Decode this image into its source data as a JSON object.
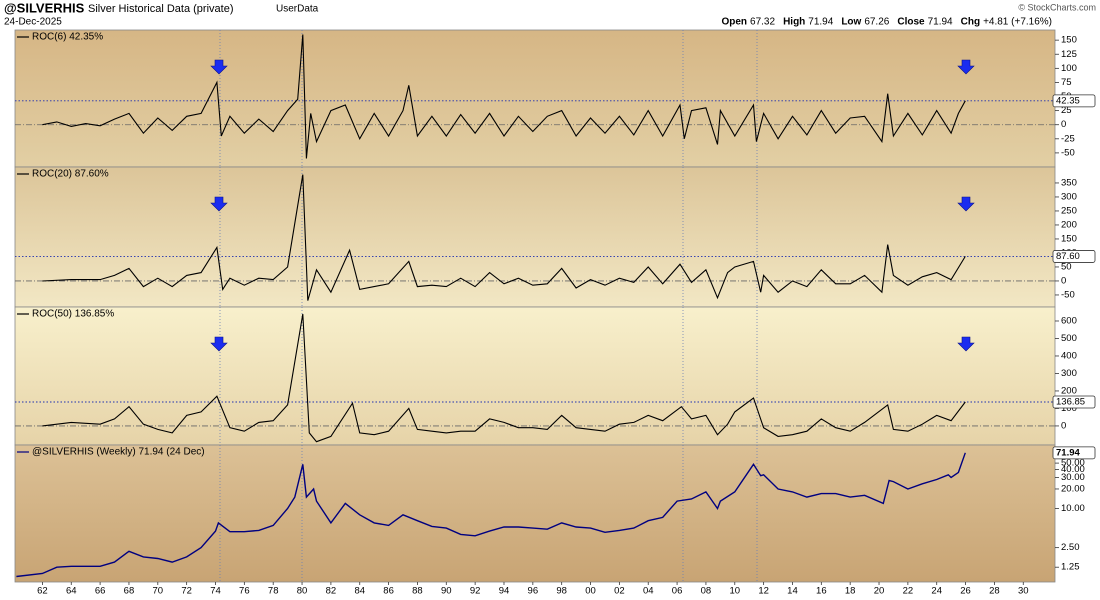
{
  "header": {
    "symbol": "@SILVERHIS",
    "name": "Silver Historical Data (private)",
    "source": "UserData",
    "date": "24-Dec-2025",
    "quote": [
      {
        "label": "Open",
        "value": "67.32"
      },
      {
        "label": "High",
        "value": "71.94"
      },
      {
        "label": "Low",
        "value": "67.26"
      },
      {
        "label": "Close",
        "value": "71.94"
      },
      {
        "label": "Chg",
        "value": "+4.81 (+7.16%)"
      }
    ],
    "credit": "© StockCharts.com"
  },
  "chart_data": [
    {
      "type": "line",
      "title": "ROC(6) 42.35%",
      "current_label": "42.35",
      "color": "#000000",
      "xlim": [
        1960.1,
        2032.2
      ],
      "ylim": [
        -75,
        168
      ],
      "yticks": [
        -50,
        -25,
        0,
        25,
        50,
        75,
        100,
        125,
        150
      ],
      "x": [
        1962,
        1963,
        1964,
        1965,
        1966,
        1967,
        1968,
        1969,
        1970,
        1971,
        1972,
        1973,
        1974.1,
        1974.4,
        1975,
        1976,
        1977,
        1978,
        1979,
        1979.7,
        1980.05,
        1980.3,
        1980.6,
        1981,
        1982,
        1983,
        1984,
        1985,
        1986,
        1987,
        1987.4,
        1988,
        1989,
        1990,
        1991,
        1992,
        1993,
        1994,
        1995,
        1996,
        1997,
        1998,
        1999,
        2000,
        2001,
        2002,
        2003,
        2004,
        2005,
        2006.2,
        2006.5,
        2007,
        2008,
        2008.8,
        2009,
        2010,
        2011.3,
        2011.5,
        2012,
        2013,
        2014,
        2015,
        2016,
        2017,
        2018,
        2019,
        2020.2,
        2020.6,
        2021,
        2022,
        2023,
        2024,
        2025,
        2025.5,
        2025.98
      ],
      "values": [
        0,
        5,
        -3,
        2,
        -2,
        10,
        20,
        -15,
        12,
        -10,
        15,
        20,
        75,
        -20,
        15,
        -15,
        10,
        -12,
        25,
        45,
        160,
        -60,
        20,
        -30,
        25,
        35,
        -25,
        20,
        -20,
        25,
        70,
        -20,
        15,
        -20,
        18,
        -15,
        20,
        -20,
        15,
        -12,
        15,
        25,
        -20,
        12,
        -15,
        15,
        -18,
        25,
        -20,
        35,
        -25,
        25,
        30,
        -35,
        25,
        -20,
        35,
        -30,
        20,
        -25,
        15,
        -18,
        25,
        -15,
        12,
        15,
        -30,
        55,
        -20,
        20,
        -18,
        25,
        -15,
        20,
        42.35
      ]
    },
    {
      "type": "line",
      "title": "ROC(20) 87.60%",
      "current_label": "87.60",
      "color": "#000000",
      "xlim": [
        1960.1,
        2032.2
      ],
      "ylim": [
        -93,
        407
      ],
      "yticks": [
        -50,
        0,
        50,
        100,
        150,
        200,
        250,
        300,
        350
      ],
      "x": [
        1962,
        1964,
        1966,
        1967,
        1968,
        1969,
        1970,
        1971,
        1972,
        1973,
        1974.1,
        1974.5,
        1975,
        1976,
        1977,
        1978,
        1979,
        1980.05,
        1980.4,
        1981,
        1982,
        1983.3,
        1984,
        1985,
        1986,
        1987.4,
        1988,
        1989,
        1990,
        1991,
        1992,
        1993,
        1994,
        1995,
        1996,
        1997,
        1998,
        1999,
        2000,
        2001,
        2002,
        2003,
        2004,
        2005,
        2006.2,
        2007,
        2008,
        2008.8,
        2009.5,
        2010,
        2011.3,
        2011.8,
        2012,
        2013,
        2014,
        2015,
        2016,
        2017,
        2018,
        2019,
        2020.2,
        2020.6,
        2021,
        2022,
        2023,
        2024,
        2025,
        2025.98
      ],
      "values": [
        0,
        5,
        5,
        20,
        45,
        -20,
        10,
        -20,
        20,
        30,
        120,
        -30,
        10,
        -15,
        10,
        5,
        50,
        380,
        -70,
        40,
        -40,
        110,
        -30,
        -20,
        -10,
        70,
        -20,
        -15,
        -20,
        10,
        -20,
        30,
        -10,
        10,
        -15,
        -10,
        45,
        -25,
        5,
        -15,
        10,
        -5,
        50,
        -10,
        60,
        -5,
        40,
        -60,
        30,
        50,
        70,
        -40,
        20,
        -40,
        0,
        -20,
        40,
        -10,
        -10,
        20,
        -40,
        130,
        20,
        -15,
        15,
        30,
        5,
        87.6
      ]
    },
    {
      "type": "line",
      "title": "ROC(50) 136.85%",
      "current_label": "136.85",
      "color": "#000000",
      "xlim": [
        1960.1,
        2032.2
      ],
      "ylim": [
        -109,
        680
      ],
      "yticks": [
        0,
        100,
        200,
        300,
        400,
        500,
        600
      ],
      "x": [
        1962,
        1964,
        1966,
        1967,
        1968,
        1969,
        1970,
        1971,
        1972,
        1973,
        1974.1,
        1975,
        1976,
        1977,
        1978,
        1979,
        1980.05,
        1980.5,
        1981,
        1982,
        1983.5,
        1984,
        1985,
        1986,
        1987.4,
        1988,
        1989,
        1990,
        1991,
        1992,
        1993,
        1994,
        1995,
        1996,
        1997,
        1998,
        1999,
        2000,
        2001,
        2002,
        2003,
        2004,
        2005,
        2006.3,
        2007,
        2008,
        2008.8,
        2009.5,
        2010,
        2011.3,
        2012,
        2013,
        2014,
        2015,
        2016,
        2017,
        2018,
        2019,
        2020.6,
        2021,
        2022,
        2023,
        2024,
        2025,
        2025.98
      ],
      "values": [
        0,
        20,
        10,
        40,
        110,
        10,
        -20,
        -40,
        60,
        80,
        170,
        -10,
        -30,
        20,
        30,
        120,
        640,
        -40,
        -90,
        -60,
        130,
        -40,
        -50,
        -30,
        100,
        -20,
        -30,
        -40,
        -30,
        -30,
        40,
        20,
        -10,
        -10,
        -20,
        60,
        -10,
        -20,
        -30,
        10,
        20,
        60,
        30,
        110,
        40,
        60,
        -50,
        10,
        80,
        160,
        -10,
        -60,
        -50,
        -30,
        40,
        -10,
        -30,
        20,
        120,
        -20,
        -30,
        10,
        60,
        30,
        136.85
      ]
    },
    {
      "type": "line",
      "title": "@SILVERHIS (Weekly) 71.94 (24 Dec)",
      "current_label": "71.94",
      "color": "#000080",
      "log_scale": true,
      "xlim": [
        1960.1,
        2032.2
      ],
      "ylim": [
        0.74,
        95
      ],
      "yticks": [
        1.25,
        {
          "value": 2.5,
          "label": "2.50"
        },
        {
          "value": 10,
          "label": "10.00"
        },
        {
          "value": 20,
          "label": "20.00"
        },
        {
          "value": 30,
          "label": "30.00"
        },
        {
          "value": 40,
          "label": "40.00"
        },
        {
          "value": 50,
          "label": "50.00"
        }
      ],
      "xticks": [
        {
          "value": 1962,
          "label": "62"
        },
        {
          "value": 1964,
          "label": "64"
        },
        {
          "value": 1966,
          "label": "66"
        },
        {
          "value": 1968,
          "label": "68"
        },
        {
          "value": 1970,
          "label": "70"
        },
        {
          "value": 1972,
          "label": "72"
        },
        {
          "value": 1974,
          "label": "74"
        },
        {
          "value": 1976,
          "label": "76"
        },
        {
          "value": 1978,
          "label": "78"
        },
        {
          "value": 1980,
          "label": "80"
        },
        {
          "value": 1982,
          "label": "82"
        },
        {
          "value": 1984,
          "label": "84"
        },
        {
          "value": 1986,
          "label": "86"
        },
        {
          "value": 1988,
          "label": "88"
        },
        {
          "value": 1990,
          "label": "90"
        },
        {
          "value": 1992,
          "label": "92"
        },
        {
          "value": 1994,
          "label": "94"
        },
        {
          "value": 1996,
          "label": "96"
        },
        {
          "value": 1998,
          "label": "98"
        },
        {
          "value": 2000,
          "label": "00"
        },
        {
          "value": 2002,
          "label": "02"
        },
        {
          "value": 2004,
          "label": "04"
        },
        {
          "value": 2006,
          "label": "06"
        },
        {
          "value": 2008,
          "label": "08"
        },
        {
          "value": 2010,
          "label": "10"
        },
        {
          "value": 2012,
          "label": "12"
        },
        {
          "value": 2014,
          "label": "14"
        },
        {
          "value": 2016,
          "label": "16"
        },
        {
          "value": 2018,
          "label": "18"
        },
        {
          "value": 2020,
          "label": "20"
        },
        {
          "value": 2022,
          "label": "22"
        },
        {
          "value": 2024,
          "label": "24"
        },
        {
          "value": 2026,
          "label": "26"
        },
        {
          "value": 2028,
          "label": "28"
        },
        {
          "value": 2030,
          "label": "30"
        }
      ],
      "x": [
        1960.2,
        1962,
        1963,
        1964,
        1965,
        1966,
        1967,
        1968,
        1969,
        1970,
        1971,
        1972,
        1973,
        1974,
        1974.2,
        1975,
        1976,
        1977,
        1978,
        1979,
        1979.5,
        1980.05,
        1980.3,
        1980.8,
        1981,
        1982,
        1983,
        1984,
        1985,
        1986,
        1987,
        1988,
        1989,
        1990,
        1991,
        1992,
        1993,
        1994,
        1995,
        1996,
        1997,
        1998,
        1999,
        2000,
        2001,
        2002,
        2003,
        2004,
        2005,
        2006,
        2007,
        2008,
        2008.8,
        2009,
        2010,
        2011.3,
        2011.8,
        2012,
        2013,
        2014,
        2015,
        2016,
        2017,
        2018,
        2019,
        2020.3,
        2020.7,
        2021,
        2022,
        2023,
        2024,
        2024.8,
        2025,
        2025.5,
        2025.98
      ],
      "values": [
        0.9,
        1.0,
        1.25,
        1.29,
        1.29,
        1.29,
        1.5,
        2.2,
        1.8,
        1.7,
        1.5,
        1.8,
        2.5,
        4.5,
        6.0,
        4.4,
        4.4,
        4.6,
        5.5,
        10,
        15,
        48,
        15,
        20,
        13,
        6,
        12,
        8,
        6,
        5.5,
        8,
        6.5,
        5.3,
        5,
        4,
        3.8,
        4.5,
        5.2,
        5.2,
        5,
        4.8,
        6,
        5.2,
        5,
        4.3,
        4.6,
        5,
        6.5,
        7.3,
        13,
        14,
        18,
        10,
        13,
        18,
        48,
        32,
        33,
        20,
        18,
        15,
        17,
        17,
        15,
        16,
        12,
        27,
        26,
        20,
        24,
        28,
        33,
        30,
        36,
        71.94
      ]
    }
  ]
}
